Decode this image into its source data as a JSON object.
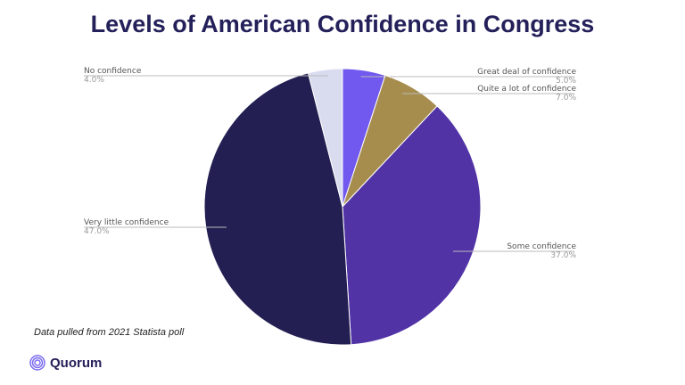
{
  "chart_data": {
    "type": "pie",
    "title": "Levels of American Confidence in Congress",
    "slices": [
      {
        "label": "Great deal of confidence",
        "value": 5.0,
        "display": "5.0%",
        "color": "#7158ee"
      },
      {
        "label": "Quite a lot of confidence",
        "value": 7.0,
        "display": "7.0%",
        "color": "#a68d4e"
      },
      {
        "label": "Some confidence",
        "value": 37.0,
        "display": "37.0%",
        "color": "#5133a5"
      },
      {
        "label": "Very little confidence",
        "value": 47.0,
        "display": "47.0%",
        "color": "#231f52"
      },
      {
        "label": "No confidence",
        "value": 4.0,
        "display": "4.0%",
        "color": "#d9dcef"
      }
    ],
    "start": "top",
    "direction": "clockwise"
  },
  "footer": {
    "source": "Data pulled from 2021 Statista poll",
    "brand": "Quorum"
  }
}
